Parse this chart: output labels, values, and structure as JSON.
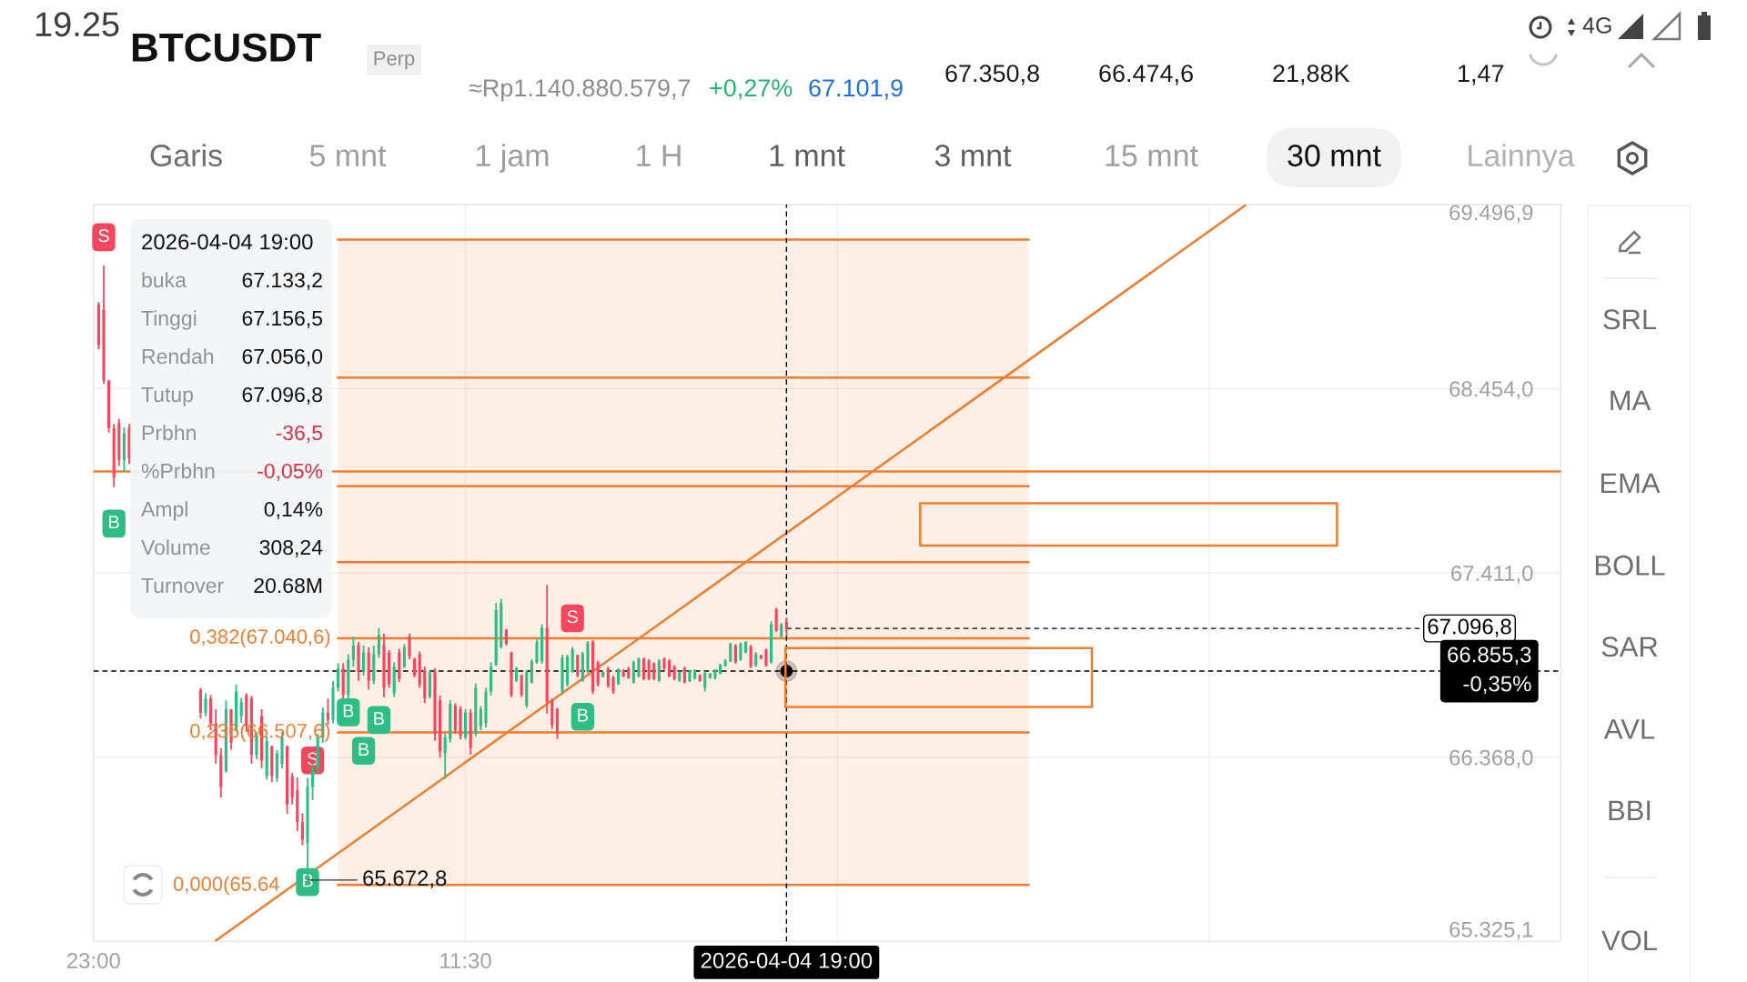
{
  "chart_data": {
    "type": "candlestick",
    "title": "BTCUSDT",
    "subtitle": "Perp",
    "x": [
      "2026-04-01T23:30",
      "2026-04-02T00:00",
      "2026-04-02T00:30",
      "2026-04-02T01:00",
      "2026-04-02T01:30",
      "2026-04-02T02:00",
      "2026-04-02T02:30",
      "2026-04-02T09:30",
      "2026-04-02T10:00",
      "2026-04-02T10:30",
      "2026-04-02T11:00",
      "2026-04-02T11:30",
      "2026-04-02T12:00",
      "2026-04-02T12:30",
      "2026-04-02T13:00",
      "2026-04-02T13:30",
      "2026-04-02T14:00",
      "2026-04-02T14:30",
      "2026-04-02T15:00",
      "2026-04-02T15:30",
      "2026-04-02T16:00",
      "2026-04-02T16:30",
      "2026-04-02T17:00",
      "2026-04-02T17:30",
      "2026-04-02T18:00",
      "2026-04-02T18:30",
      "2026-04-02T19:00",
      "2026-04-02T19:30",
      "2026-04-02T20:00",
      "2026-04-02T20:30",
      "2026-04-02T21:00",
      "2026-04-02T21:30",
      "2026-04-02T22:00",
      "2026-04-02T22:30",
      "2026-04-02T23:00",
      "2026-04-02T23:30",
      "2026-04-03T00:00",
      "2026-04-03T00:30",
      "2026-04-03T01:00",
      "2026-04-03T01:30",
      "2026-04-03T02:00",
      "2026-04-03T02:30",
      "2026-04-03T03:00",
      "2026-04-03T03:30",
      "2026-04-03T04:00",
      "2026-04-03T04:30",
      "2026-04-03T05:00",
      "2026-04-03T05:30",
      "2026-04-03T06:00",
      "2026-04-03T06:30",
      "2026-04-03T07:00",
      "2026-04-03T07:30",
      "2026-04-03T08:00",
      "2026-04-03T08:30",
      "2026-04-03T09:00",
      "2026-04-03T09:30",
      "2026-04-03T10:00",
      "2026-04-03T10:30",
      "2026-04-03T11:00",
      "2026-04-03T11:30",
      "2026-04-03T12:00",
      "2026-04-03T12:30",
      "2026-04-03T13:00",
      "2026-04-03T13:30",
      "2026-04-03T14:00",
      "2026-04-03T14:30",
      "2026-04-03T15:00",
      "2026-04-03T15:30",
      "2026-04-03T16:00",
      "2026-04-03T16:30",
      "2026-04-03T17:00",
      "2026-04-03T17:30",
      "2026-04-03T18:00",
      "2026-04-03T18:30",
      "2026-04-03T19:00",
      "2026-04-03T19:30",
      "2026-04-03T20:00",
      "2026-04-03T20:30",
      "2026-04-03T21:00",
      "2026-04-03T21:30",
      "2026-04-03T22:00",
      "2026-04-03T22:30",
      "2026-04-03T23:00",
      "2026-04-03T23:30",
      "2026-04-04T00:00",
      "2026-04-04T00:30",
      "2026-04-04T01:00",
      "2026-04-04T01:30",
      "2026-04-04T02:00",
      "2026-04-04T02:30",
      "2026-04-04T03:00",
      "2026-04-04T03:30",
      "2026-04-04T04:00",
      "2026-04-04T04:30",
      "2026-04-04T05:00",
      "2026-04-04T05:30",
      "2026-04-04T06:00",
      "2026-04-04T06:30",
      "2026-04-04T07:00",
      "2026-04-04T07:30",
      "2026-04-04T08:00",
      "2026-04-04T08:30",
      "2026-04-04T09:00",
      "2026-04-04T09:30",
      "2026-04-04T10:00",
      "2026-04-04T10:30",
      "2026-04-04T11:00",
      "2026-04-04T11:30",
      "2026-04-04T12:00",
      "2026-04-04T12:30",
      "2026-04-04T13:00",
      "2026-04-04T13:30",
      "2026-04-04T14:00",
      "2026-04-04T14:30",
      "2026-04-04T15:00",
      "2026-04-04T15:30",
      "2026-04-04T16:00",
      "2026-04-04T16:30",
      "2026-04-04T17:00",
      "2026-04-04T17:30",
      "2026-04-04T18:00",
      "2026-04-04T18:30",
      "2026-04-04T19:00"
    ],
    "ohlc": [
      [
        68930,
        68944,
        68676,
        68700
      ],
      [
        68900,
        69149.8,
        68480,
        68500
      ],
      [
        68500,
        68502,
        68205,
        68230
      ],
      [
        68230,
        68254,
        67896,
        67950
      ],
      [
        68260,
        68284,
        68016,
        68050
      ],
      [
        68050,
        68235,
        67985,
        68200
      ],
      [
        68230,
        68254,
        68026,
        68060
      ],
      [
        66750,
        66760,
        66588,
        66620
      ],
      [
        66620,
        66730,
        66600,
        66700
      ],
      [
        66700,
        66720,
        66520,
        66560
      ],
      [
        66560,
        66640,
        66330,
        66380
      ],
      [
        66380,
        66420,
        66140,
        66200
      ],
      [
        66290,
        66690,
        66280,
        66640
      ],
      [
        66640,
        66640,
        66410,
        66450
      ],
      [
        66520,
        66780,
        66510,
        66740
      ],
      [
        66600,
        66704,
        66562,
        66680
      ],
      [
        66720,
        66730,
        66511,
        66540
      ],
      [
        66700,
        66716,
        66331,
        66380
      ],
      [
        66380,
        66511,
        66356,
        66490
      ],
      [
        66600,
        66640,
        66305,
        66350
      ],
      [
        66260,
        66485,
        66241,
        66460
      ],
      [
        66430,
        66434,
        66228,
        66260
      ],
      [
        66250,
        66408,
        66228,
        66390
      ],
      [
        66330,
        66511,
        66305,
        66480
      ],
      [
        66430,
        66434,
        66048,
        66100
      ],
      [
        66260,
        66279,
        66100,
        66140
      ],
      [
        66180,
        66253,
        65950,
        66000
      ],
      [
        66000,
        66050,
        65870,
        65900
      ],
      [
        65880,
        66250,
        65672.8,
        66200
      ],
      [
        66200,
        66331,
        66125,
        66300
      ],
      [
        66300,
        66500,
        66280,
        66480
      ],
      [
        66480,
        66650,
        66450,
        66620
      ],
      [
        66620,
        66700,
        66550,
        66580
      ],
      [
        66580,
        66800,
        66560,
        66760
      ],
      [
        66760,
        66900,
        66740,
        66870
      ],
      [
        66870,
        66900,
        66700,
        66720
      ],
      [
        66720,
        66950,
        66700,
        66920
      ],
      [
        66920,
        67050,
        66880,
        67000
      ],
      [
        67000,
        67020,
        66800,
        66850
      ],
      [
        66850,
        67000,
        66830,
        66960
      ],
      [
        66960,
        66990,
        66750,
        66800
      ],
      [
        66800,
        67000,
        66780,
        66950
      ],
      [
        66950,
        67100,
        66930,
        67060
      ],
      [
        67000,
        67068,
        66708,
        66760
      ],
      [
        66960,
        66974,
        66760,
        66780
      ],
      [
        66730,
        66905,
        66708,
        66880
      ],
      [
        66960,
        66983,
        66794,
        66810
      ],
      [
        66880,
        67008,
        66871,
        66990
      ],
      [
        67050,
        67068,
        66923,
        66940
      ],
      [
        66925,
        66931,
        66820,
        66830
      ],
      [
        66950,
        66966,
        66760,
        66780
      ],
      [
        66860,
        66880,
        66674,
        66700
      ],
      [
        66710,
        66863,
        66700,
        66850
      ],
      [
        66850,
        66871,
        66460,
        66500
      ],
      [
        66690,
        66717,
        66365,
        66400
      ],
      [
        66390,
        66502,
        66245,
        66480
      ],
      [
        66470,
        66691,
        66451,
        66670
      ],
      [
        66660,
        66674,
        66502,
        66520
      ],
      [
        66640,
        66657,
        66468,
        66490
      ],
      [
        66480,
        66640,
        66468,
        66620
      ],
      [
        66620,
        66640,
        66382,
        66420
      ],
      [
        66500,
        66785,
        66485,
        66760
      ],
      [
        66540,
        66657,
        66520,
        66640
      ],
      [
        66560,
        66760,
        66537,
        66740
      ],
      [
        66740,
        66905,
        66717,
        66880
      ],
      [
        66890,
        67240,
        66885,
        67200
      ],
      [
        66990,
        67266,
        66983,
        67240
      ],
      [
        67090,
        67094,
        67000,
        67010
      ],
      [
        66960,
        66965,
        66708,
        66720
      ],
      [
        66800,
        66880,
        66794,
        66870
      ],
      [
        66830,
        66837,
        66708,
        66720
      ],
      [
        66660,
        66862,
        66648,
        66850
      ],
      [
        66790,
        66923,
        66785,
        66910
      ],
      [
        66905,
        67034,
        66897,
        67020
      ],
      [
        66910,
        67120,
        66897,
        67100
      ],
      [
        67100,
        67343,
        66614,
        66680
      ],
      [
        66690,
        66700,
        66528,
        66550
      ],
      [
        66640,
        66648,
        66471,
        66500
      ],
      [
        66740,
        66948,
        66725,
        66930
      ],
      [
        66780,
        66948,
        66768,
        66935
      ],
      [
        66850,
        66991,
        66845,
        66980
      ],
      [
        66945,
        66948,
        66820,
        66830
      ],
      [
        66800,
        66965,
        66794,
        66955
      ],
      [
        66850,
        67025,
        66845,
        67015
      ],
      [
        67020,
        67031,
        66725,
        66740
      ],
      [
        66905,
        66914,
        66768,
        66780
      ],
      [
        66822,
        66854,
        66820,
        66850
      ],
      [
        66870,
        66880,
        66760,
        66770
      ],
      [
        66820,
        66828,
        66725,
        66740
      ],
      [
        66780,
        66871,
        66777,
        66865
      ],
      [
        66860,
        66866,
        66820,
        66825
      ],
      [
        66870,
        66880,
        66811,
        66815
      ],
      [
        66790,
        66914,
        66785,
        66905
      ],
      [
        66825,
        66931,
        66820,
        66925
      ],
      [
        66925,
        66931,
        66803,
        66810
      ],
      [
        66915,
        66923,
        66803,
        66810
      ],
      [
        66900,
        66905,
        66803,
        66810
      ],
      [
        66800,
        66923,
        66794,
        66915
      ],
      [
        66925,
        66931,
        66862,
        66868
      ],
      [
        66915,
        66923,
        66820,
        66825
      ],
      [
        66880,
        66888,
        66803,
        66810
      ],
      [
        66800,
        66854,
        66794,
        66848
      ],
      [
        66872,
        66880,
        66785,
        66792
      ],
      [
        66798,
        66862,
        66794,
        66855
      ],
      [
        66812,
        66866,
        66808,
        66860
      ],
      [
        66832,
        66837,
        66794,
        66800
      ],
      [
        66760,
        66854,
        66739,
        66845
      ],
      [
        66815,
        66845,
        66811,
        66840
      ],
      [
        66815,
        66866,
        66808,
        66860
      ],
      [
        66840,
        66897,
        66837,
        66890
      ],
      [
        66885,
        66923,
        66880,
        66915
      ],
      [
        66910,
        67017,
        66905,
        67010
      ],
      [
        67000,
        67008,
        66897,
        66905
      ],
      [
        66920,
        67017,
        66914,
        67010
      ],
      [
        66960,
        67025,
        66957,
        67020
      ],
      [
        66995,
        67003,
        66871,
        66880
      ],
      [
        66885,
        66962,
        66880,
        66955
      ],
      [
        66945,
        66948,
        66923,
        66925
      ],
      [
        66975,
        66983,
        66880,
        66885
      ],
      [
        66905,
        67137,
        66897,
        67120
      ],
      [
        67205,
        67214,
        67077,
        67085
      ],
      [
        67050,
        67128,
        67043,
        67120
      ],
      [
        67133.2,
        67156.5,
        67056.0,
        67096.8
      ]
    ],
    "colors": [
      "#f6465d",
      "#f6465d",
      "#f6465d",
      "#f6465d",
      "#f6465d",
      "#2ebd85",
      "#f6465d",
      "#f6465d",
      "#2ebd85",
      "#f6465d",
      "#f6465d",
      "#f6465d",
      "#2ebd85",
      "#f6465d",
      "#2ebd85",
      "#2ebd85",
      "#f6465d",
      "#f6465d",
      "#2ebd85",
      "#f6465d",
      "#2ebd85",
      "#f6465d",
      "#2ebd85",
      "#2ebd85",
      "#f6465d",
      "#f6465d",
      "#f6465d",
      "#f6465d",
      "#2ebd85",
      "#2ebd85",
      "#2ebd85",
      "#2ebd85",
      "#f6465d",
      "#2ebd85",
      "#2ebd85",
      "#f6465d",
      "#2ebd85",
      "#2ebd85",
      "#f6465d",
      "#2ebd85",
      "#f6465d",
      "#2ebd85",
      "#2ebd85",
      "#f6465d",
      "#f6465d",
      "#2ebd85",
      "#f6465d",
      "#2ebd85",
      "#f6465d",
      "#f6465d",
      "#f6465d",
      "#f6465d",
      "#2ebd85",
      "#f6465d",
      "#f6465d",
      "#2ebd85",
      "#2ebd85",
      "#f6465d",
      "#f6465d",
      "#2ebd85",
      "#f6465d",
      "#2ebd85",
      "#2ebd85",
      "#2ebd85",
      "#2ebd85",
      "#2ebd85",
      "#2ebd85",
      "#f6465d",
      "#f6465d",
      "#2ebd85",
      "#f6465d",
      "#2ebd85",
      "#2ebd85",
      "#2ebd85",
      "#2ebd85",
      "#f6465d",
      "#f6465d",
      "#f6465d",
      "#2ebd85",
      "#2ebd85",
      "#2ebd85",
      "#f6465d",
      "#2ebd85",
      "#2ebd85",
      "#f6465d",
      "#f6465d",
      "#2ebd85",
      "#f6465d",
      "#f6465d",
      "#2ebd85",
      "#f6465d",
      "#f6465d",
      "#2ebd85",
      "#2ebd85",
      "#f6465d",
      "#f6465d",
      "#f6465d",
      "#2ebd85",
      "#f6465d",
      "#f6465d",
      "#f6465d",
      "#2ebd85",
      "#f6465d",
      "#2ebd85",
      "#2ebd85",
      "#f6465d",
      "#2ebd85",
      "#2ebd85",
      "#2ebd85",
      "#2ebd85",
      "#2ebd85",
      "#2ebd85",
      "#f6465d",
      "#2ebd85",
      "#2ebd85",
      "#f6465d",
      "#2ebd85",
      "#f6465d",
      "#f6465d",
      "#2ebd85",
      "#f6465d",
      "#2ebd85",
      "#f6465d"
    ],
    "series": [
      {
        "type": "line",
        "color": "#ef7d2f",
        "x": [
          "2026-04-02T23:00",
          "2026-04-05T18:45"
        ],
        "values": [
          69297,
          69297
        ]
      },
      {
        "type": "line",
        "color": "#ef7d2f",
        "x": [
          "2026-04-02T23:00",
          "2026-04-05T18:45"
        ],
        "values": [
          68516,
          68516
        ]
      },
      {
        "type": "line",
        "color": "#ef7d2f",
        "x": [
          "2026-04-02T23:00",
          "2026-04-05T18:45"
        ],
        "values": [
          67902,
          67902
        ]
      },
      {
        "type": "line",
        "color": "#ef7d2f",
        "x": [
          "2026-04-02T23:00",
          "2026-04-05T18:45"
        ],
        "values": [
          67472,
          67472
        ]
      },
      {
        "type": "line",
        "name": "0,382(67.040,6)",
        "color": "#ef7d2f",
        "x": [
          "2026-04-02T23:00",
          "2026-04-05T18:45"
        ],
        "values": [
          67040.6,
          67040.6
        ]
      },
      {
        "type": "line",
        "name": "0,236(66.507,6)",
        "color": "#ef7d2f",
        "x": [
          "2026-04-02T23:00",
          "2026-04-05T18:45"
        ],
        "values": [
          66507.6,
          66507.6
        ]
      },
      {
        "type": "line",
        "color": "#ef7d2f",
        "x": [
          "2026-04-02T23:00",
          "2026-04-05T18:45"
        ],
        "values": [
          65645,
          65645
        ],
        "lower": [
          65645,
          65645
        ],
        "upper": [
          69297,
          69297
        ]
      },
      {
        "type": "line",
        "color": "#ef7d2f",
        "x": [
          "2026-04-02T11:00",
          "2026-04-06T16:00"
        ],
        "values": [
          65330,
          69490
        ]
      },
      {
        "type": "line",
        "name": "67.096,8",
        "color": "#000000",
        "line_style": "dashed",
        "x": [
          "2026-04-04T19:00",
          "2026-04-07T09:30"
        ],
        "values": [
          67096.8,
          67096.8
        ]
      },
      {
        "type": "scatter",
        "name": "S",
        "color": "#f6465d",
        "x": [
          "2026-04-02T00:00",
          "2026-04-02T20:30",
          "2026-04-03T22:00"
        ],
        "values": [
          69311,
          66350,
          67154
        ]
      },
      {
        "type": "scatter",
        "name": "B",
        "color": "#2ebd85",
        "x": [
          "2026-04-02T01:00",
          "2026-04-03T00:00",
          "2026-04-03T03:00",
          "2026-04-03T01:30",
          "2026-04-02T20:00",
          "2026-04-03T23:00"
        ],
        "values": [
          67690,
          66622,
          66578,
          66404,
          65661,
          66597
        ]
      }
    ],
    "xlim": [
      "2026-04-01T23:00",
      "2026-04-07T23:00"
    ],
    "xticks": [
      {
        "value": "2026-04-01T23:00",
        "label": "23:00"
      },
      {
        "value": "2026-04-03T11:30",
        "label": "11:30"
      },
      {
        "value": "2026-04-05T00:00",
        "label": null
      },
      {
        "value": "2026-04-06T12:30",
        "label": null
      }
    ],
    "ylim": [
      65325.1,
      69496.9
    ],
    "yticks": [
      {
        "value": 65325.1,
        "label": "65.325,1"
      },
      {
        "value": 66368.0,
        "label": "66.368,0"
      },
      {
        "value": 67411.0,
        "label": "67.411,0"
      },
      {
        "value": 68454.0,
        "label": "68.454,0"
      },
      {
        "value": 69496.9,
        "label": "69.496,9"
      }
    ],
    "grid": true,
    "ref_lines": [
      {
        "axis": "y",
        "value": 67985,
        "color": "#ef7d2f"
      },
      {
        "axis": "y",
        "value": 66855.3,
        "label": "66.855,3\n-0,35%",
        "color": "#000000",
        "line_style": "dashed"
      },
      {
        "axis": "x",
        "value": "2026-04-04T19:00",
        "label": "2026-04-04 19:00",
        "color": "#000000",
        "line_style": "dashed"
      }
    ],
    "annotations": [
      "19.25",
      "4G",
      "≈Rp1.140.880.579,7",
      "+0,27%",
      "67.101,9",
      "67.350,8",
      "66.474,6",
      "21,88K",
      "1,47",
      "Garis",
      "5 mnt",
      "1 jam",
      "1 H",
      "1 mnt",
      "3 mnt",
      "15 mnt",
      "30 mnt",
      "Lainnya",
      "SRL",
      "MA",
      "EMA",
      "BOLL",
      "SAR",
      "AVL",
      "BBI",
      "VOL",
      "2026-04-04 19:00",
      "buka",
      "67.133,2",
      "Tinggi",
      "67.156,5",
      "Rendah",
      "67.056,0",
      "Tutup",
      "67.096,8",
      "Prbhn",
      "-36,5",
      "%Prbhn",
      "-0,05%",
      "Ampl",
      "0,14%",
      "Volume",
      "308,24",
      "Turnover",
      "20.68M",
      "0,000(65.64",
      {
        "text": "65.672,8",
        "x": "2026-04-02T20:00",
        "y": 65672.8
      }
    ]
  }
}
